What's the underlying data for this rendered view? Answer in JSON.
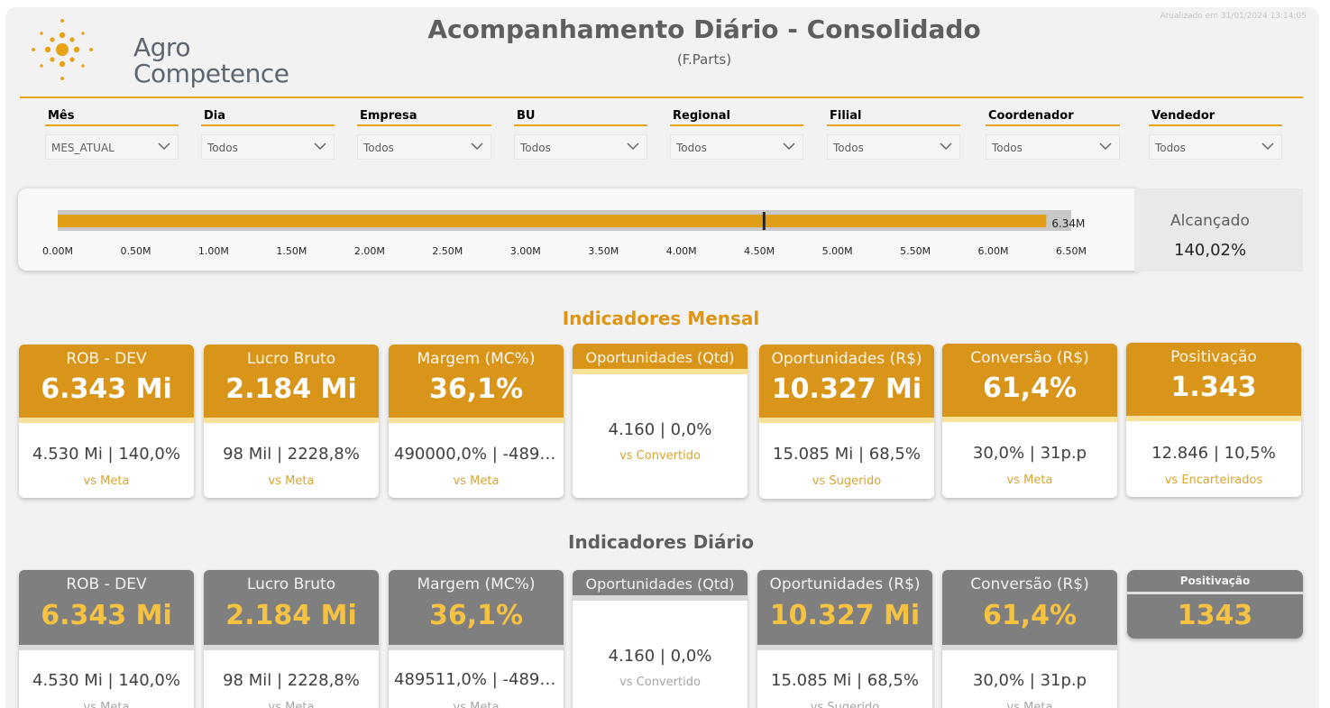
{
  "header": {
    "logo_line1": "Agro",
    "logo_line2": "Competence",
    "title": "Acompanhamento Diário - Consolidado",
    "subtitle": "(F.Parts)",
    "updated": "Atualizado em 31/01/2024 13:14:05"
  },
  "filters": [
    {
      "label": "Mês",
      "value": "MES_ATUAL"
    },
    {
      "label": "Dia",
      "value": "Todos"
    },
    {
      "label": "Empresa",
      "value": "Todos"
    },
    {
      "label": "BU",
      "value": "Todos"
    },
    {
      "label": "Regional",
      "value": "Todos"
    },
    {
      "label": "Filial",
      "value": "Todos"
    },
    {
      "label": "Coordenador",
      "value": "Todos"
    },
    {
      "label": "Vendedor",
      "value": "Todos"
    }
  ],
  "gauge": {
    "actual": 6.34,
    "target": 4.53,
    "max": 6.5,
    "value_label": "6.34M",
    "ticks": [
      "0.00M",
      "0.50M",
      "1.00M",
      "1.50M",
      "2.00M",
      "2.50M",
      "3.00M",
      "3.50M",
      "4.00M",
      "4.50M",
      "5.00M",
      "5.50M",
      "6.00M",
      "6.50M"
    ],
    "reached_label": "Alcançado",
    "reached_value": "140,02%"
  },
  "colors": {
    "brand_orange": "#d9951a",
    "orange_title": "#de9514",
    "gray_header": "#7f7f7f",
    "daily_value": "#f5c242",
    "meta_orange": "#d9a430",
    "strip_yellow": "#f8e39a",
    "strip_gray": "#d9d9d9"
  },
  "monthly": {
    "title": "Indicadores Mensal",
    "cards": [
      {
        "name": "ROB - DEV",
        "value": "6.343 Mi",
        "meta": "4.530 Mi | 140,0%",
        "sub": "vs Meta"
      },
      {
        "name": "Lucro Bruto",
        "value": "2.184 Mi",
        "meta": "98 Mil | 2228,8%",
        "sub": "vs Meta"
      },
      {
        "name": "Margem (MC%)",
        "value": "36,1%",
        "meta": "490000,0% | -489....",
        "sub": "vs Meta"
      },
      {
        "name": "Oportunidades (Qtd)",
        "meta": "4.160 | 0,0%",
        "sub": "vs Convertido"
      },
      {
        "name": "Oportunidades (R$)",
        "value": "10.327 Mi",
        "meta": "15.085 Mi | 68,5%",
        "sub": "vs Sugerido"
      },
      {
        "name": "Conversão (R$)",
        "value": "61,4%",
        "meta": "30,0% | 31p.p",
        "sub": "vs Meta"
      },
      {
        "name": "Positivação",
        "value": "1.343",
        "meta": "12.846 | 10,5%",
        "sub": "vs Encarteirados"
      }
    ]
  },
  "daily": {
    "title": "Indicadores Diário",
    "cards": [
      {
        "name": "ROB - DEV",
        "value": "6.343 Mi",
        "meta": "4.530 Mi | 140,0%",
        "sub": "vs Meta"
      },
      {
        "name": "Lucro Bruto",
        "value": "2.184 Mi",
        "meta": "98 Mil | 2228,8%",
        "sub": "vs Meta"
      },
      {
        "name": "Margem (MC%)",
        "value": "36,1%",
        "meta": "489511,0% | -489....",
        "sub": "vs Meta"
      },
      {
        "name": "Oportunidades (Qtd)",
        "meta": "4.160 | 0,0%",
        "sub": "vs Convertido"
      },
      {
        "name": "Oportunidades (R$)",
        "value": "10.327 Mi",
        "meta": "15.085 Mi | 68,5%",
        "sub": "vs Sugerido"
      },
      {
        "name": "Conversão (R$)",
        "value": "61,4%",
        "meta": "30,0% | 31p.p",
        "sub": "vs Meta"
      }
    ],
    "positivacao": {
      "name": "Positivação",
      "value": "1343"
    }
  }
}
